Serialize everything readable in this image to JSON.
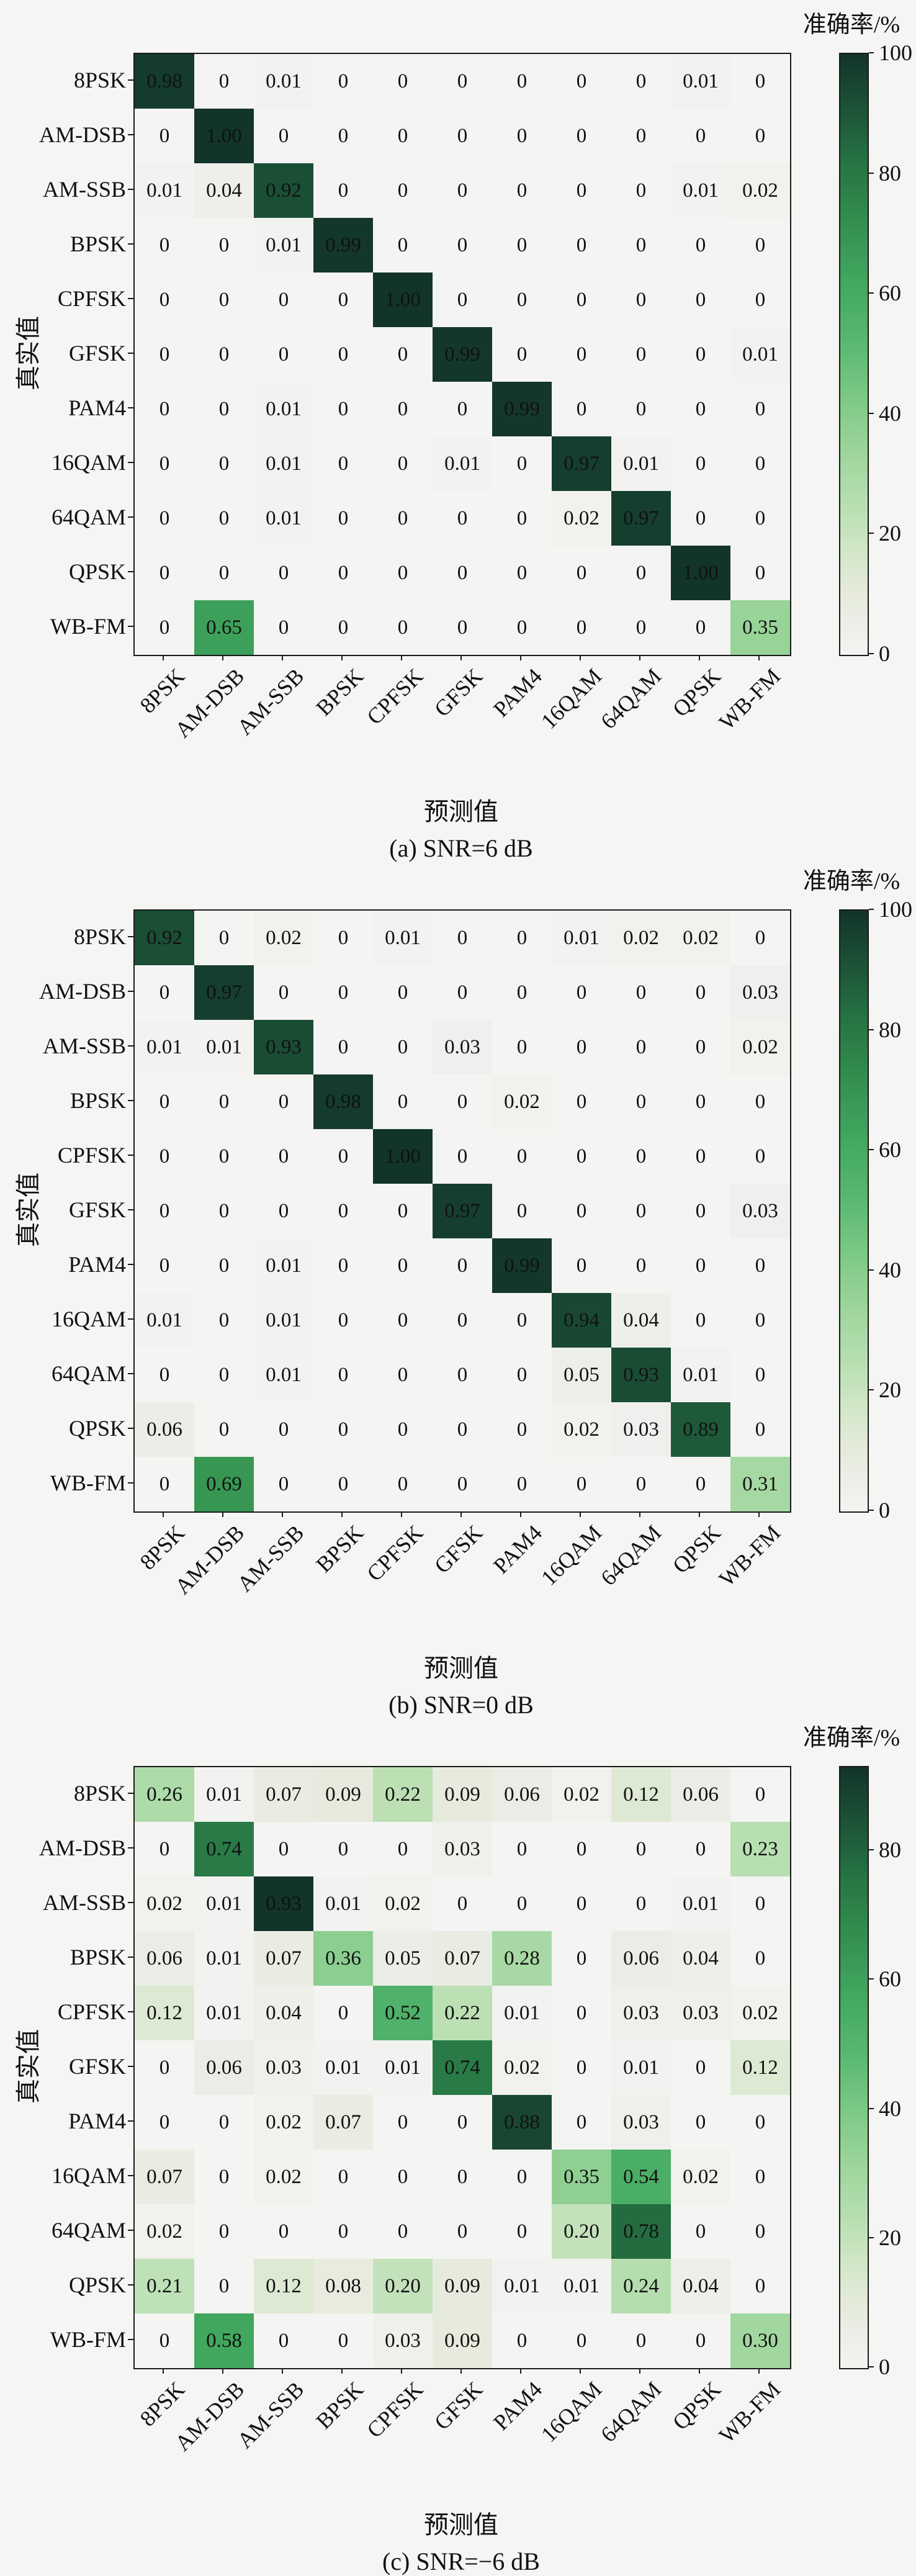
{
  "figure": {
    "colorbar_label": "准确率/%",
    "xlabel": "预测值",
    "ylabel": "真实值",
    "categories": [
      "8PSK",
      "AM-DSB",
      "AM-SSB",
      "BPSK",
      "CPFSK",
      "GFSK",
      "PAM4",
      "16QAM",
      "64QAM",
      "QPSK",
      "WB-FM"
    ],
    "colors": {
      "background": "#f5f5f3",
      "axis": "#1a1a1a",
      "cell_text_dark": "#111111",
      "cell_text_light": "#ffffff",
      "colormap_stops": [
        [
          0.0,
          "#f4f4f2"
        ],
        [
          0.05,
          "#eceee9"
        ],
        [
          0.11,
          "#e4ead9"
        ],
        [
          0.18,
          "#cfe6c6"
        ],
        [
          0.25,
          "#b7dfb0"
        ],
        [
          0.33,
          "#9fd69d"
        ],
        [
          0.42,
          "#80ca88"
        ],
        [
          0.52,
          "#58b871"
        ],
        [
          0.62,
          "#42a75f"
        ],
        [
          0.72,
          "#338f4e"
        ],
        [
          0.82,
          "#267343"
        ],
        [
          0.9,
          "#1d5638"
        ],
        [
          1.0,
          "#12342a"
        ]
      ]
    }
  },
  "chart_data": [
    {
      "type": "heatmap",
      "title": "(a) SNR=6 dB",
      "xlabel": "预测值",
      "ylabel": "真实值",
      "colorbar_label": "准确率/%",
      "legend_position": "right",
      "grid": false,
      "vmax_percent": 100,
      "colorbar_ticks": [
        0,
        20,
        40,
        60,
        80,
        100
      ],
      "categories": [
        "8PSK",
        "AM-DSB",
        "AM-SSB",
        "BPSK",
        "CPFSK",
        "GFSK",
        "PAM4",
        "16QAM",
        "64QAM",
        "QPSK",
        "WB-FM"
      ],
      "matrix": [
        [
          0.98,
          0,
          0.01,
          0,
          0,
          0,
          0,
          0,
          0,
          0.01,
          0
        ],
        [
          0,
          1.0,
          0,
          0,
          0,
          0,
          0,
          0,
          0,
          0,
          0
        ],
        [
          0.01,
          0.04,
          0.92,
          0,
          0,
          0,
          0,
          0,
          0,
          0.01,
          0.02
        ],
        [
          0,
          0,
          0.01,
          0.99,
          0,
          0,
          0,
          0,
          0,
          0,
          0
        ],
        [
          0,
          0,
          0,
          0,
          1.0,
          0,
          0,
          0,
          0,
          0,
          0
        ],
        [
          0,
          0,
          0,
          0,
          0,
          0.99,
          0,
          0,
          0,
          0,
          0.01
        ],
        [
          0,
          0,
          0.01,
          0,
          0,
          0,
          0.99,
          0,
          0,
          0,
          0
        ],
        [
          0,
          0,
          0.01,
          0,
          0,
          0.01,
          0,
          0.97,
          0.01,
          0,
          0
        ],
        [
          0,
          0,
          0.01,
          0,
          0,
          0,
          0,
          0.02,
          0.97,
          0,
          0
        ],
        [
          0,
          0,
          0,
          0,
          0,
          0,
          0,
          0,
          0,
          1.0,
          0
        ],
        [
          0,
          0.65,
          0,
          0,
          0,
          0,
          0,
          0,
          0,
          0,
          0.35
        ]
      ]
    },
    {
      "type": "heatmap",
      "title": "(b) SNR=0 dB",
      "xlabel": "预测值",
      "ylabel": "真实值",
      "colorbar_label": "准确率/%",
      "legend_position": "right",
      "grid": false,
      "vmax_percent": 100,
      "colorbar_ticks": [
        0,
        20,
        40,
        60,
        80,
        100
      ],
      "categories": [
        "8PSK",
        "AM-DSB",
        "AM-SSB",
        "BPSK",
        "CPFSK",
        "GFSK",
        "PAM4",
        "16QAM",
        "64QAM",
        "QPSK",
        "WB-FM"
      ],
      "matrix": [
        [
          0.92,
          0,
          0.02,
          0,
          0.01,
          0,
          0,
          0.01,
          0.02,
          0.02,
          0
        ],
        [
          0,
          0.97,
          0,
          0,
          0,
          0,
          0,
          0,
          0,
          0,
          0.03
        ],
        [
          0.01,
          0.01,
          0.93,
          0,
          0,
          0.03,
          0,
          0,
          0,
          0,
          0.02
        ],
        [
          0,
          0,
          0,
          0.98,
          0,
          0,
          0.02,
          0,
          0,
          0,
          0
        ],
        [
          0,
          0,
          0,
          0,
          1.0,
          0,
          0,
          0,
          0,
          0,
          0
        ],
        [
          0,
          0,
          0,
          0,
          0,
          0.97,
          0,
          0,
          0,
          0,
          0.03
        ],
        [
          0,
          0,
          0.01,
          0,
          0,
          0,
          0.99,
          0,
          0,
          0,
          0
        ],
        [
          0.01,
          0,
          0.01,
          0,
          0,
          0,
          0,
          0.94,
          0.04,
          0,
          0
        ],
        [
          0,
          0,
          0.01,
          0,
          0,
          0,
          0,
          0.05,
          0.93,
          0.01,
          0
        ],
        [
          0.06,
          0,
          0,
          0,
          0,
          0,
          0,
          0.02,
          0.03,
          0.89,
          0
        ],
        [
          0,
          0.69,
          0,
          0,
          0,
          0,
          0,
          0,
          0,
          0,
          0.31
        ]
      ]
    },
    {
      "type": "heatmap",
      "title": "(c) SNR=−6 dB",
      "xlabel": "预测值",
      "ylabel": "真实值",
      "colorbar_label": "准确率/%",
      "legend_position": "right",
      "grid": false,
      "vmax_percent": 93,
      "colorbar_ticks": [
        0,
        20,
        40,
        60,
        80
      ],
      "categories": [
        "8PSK",
        "AM-DSB",
        "AM-SSB",
        "BPSK",
        "CPFSK",
        "GFSK",
        "PAM4",
        "16QAM",
        "64QAM",
        "QPSK",
        "WB-FM"
      ],
      "matrix": [
        [
          0.26,
          0.01,
          0.07,
          0.09,
          0.22,
          0.09,
          0.06,
          0.02,
          0.12,
          0.06,
          0
        ],
        [
          0,
          0.74,
          0,
          0,
          0,
          0.03,
          0,
          0,
          0,
          0,
          0.23
        ],
        [
          0.02,
          0.01,
          0.93,
          0.01,
          0.02,
          0,
          0,
          0,
          0,
          0.01,
          0
        ],
        [
          0.06,
          0.01,
          0.07,
          0.36,
          0.05,
          0.07,
          0.28,
          0,
          0.06,
          0.04,
          0
        ],
        [
          0.12,
          0.01,
          0.04,
          0,
          0.52,
          0.22,
          0.01,
          0,
          0.03,
          0.03,
          0.02
        ],
        [
          0,
          0.06,
          0.03,
          0.01,
          0.01,
          0.74,
          0.02,
          0,
          0.01,
          0,
          0.12
        ],
        [
          0,
          0,
          0.02,
          0.07,
          0,
          0,
          0.88,
          0,
          0.03,
          0,
          0
        ],
        [
          0.07,
          0,
          0.02,
          0,
          0,
          0,
          0,
          0.35,
          0.54,
          0.02,
          0
        ],
        [
          0.02,
          0,
          0,
          0,
          0,
          0,
          0,
          0.2,
          0.78,
          0,
          0
        ],
        [
          0.21,
          0,
          0.12,
          0.08,
          0.2,
          0.09,
          0.01,
          0.01,
          0.24,
          0.04,
          0
        ],
        [
          0,
          0.58,
          0,
          0,
          0.03,
          0.09,
          0,
          0,
          0,
          0,
          0.3
        ]
      ]
    }
  ]
}
